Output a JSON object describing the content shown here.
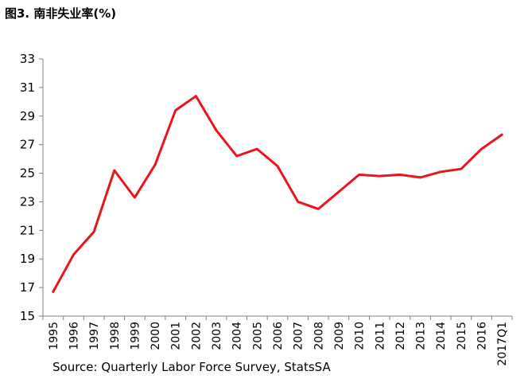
{
  "title": "图3. 南非失业率(%)",
  "source": "Source: Quarterly Labor Force Survey, StatsSA",
  "chart_data": {
    "type": "line",
    "title": "图3. 南非失业率(%)",
    "categories": [
      "1995",
      "1996",
      "1997",
      "1998",
      "1999",
      "2000",
      "2001",
      "2002",
      "2003",
      "2004",
      "2005",
      "2006",
      "2007",
      "2008",
      "2009",
      "2010",
      "2011",
      "2012",
      "2013",
      "2014",
      "2015",
      "2016",
      "2017Q1"
    ],
    "series": [
      {
        "values": [
          16.7,
          19.3,
          20.9,
          25.2,
          23.3,
          25.6,
          29.4,
          30.4,
          28.0,
          26.2,
          26.7,
          25.5,
          23.0,
          22.5,
          23.7,
          24.9,
          24.8,
          24.9,
          24.7,
          25.1,
          25.3,
          26.7,
          27.7
        ],
        "color": "#e8151d"
      }
    ],
    "ylim": [
      15,
      33
    ],
    "yticks": [
      15,
      17,
      19,
      21,
      23,
      25,
      27,
      29,
      31,
      33
    ],
    "grid": false
  }
}
